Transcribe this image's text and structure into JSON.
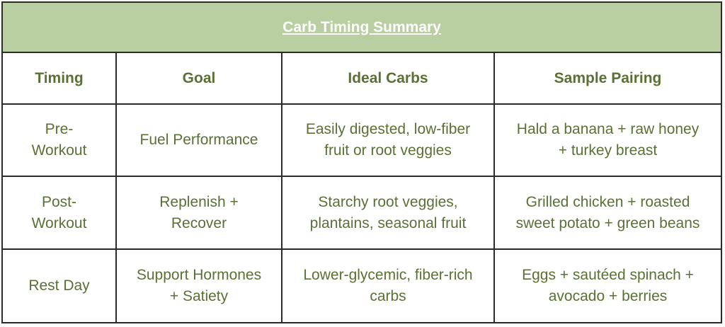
{
  "title": "Carb Timing Summary",
  "headers": [
    "Timing",
    "Goal",
    "Ideal Carbs",
    "Sample Pairing"
  ],
  "rows": [
    [
      "Pre-\nWorkout",
      "Fuel Performance",
      "Easily digested, low-fiber\nfruit or root veggies",
      "Hald a banana + raw honey\n+ turkey breast"
    ],
    [
      "Post-\nWorkout",
      "Replenish +\nRecover",
      "Starchy root veggies,\nplantains, seasonal fruit",
      "Grilled chicken + roasted\nsweet potato + green beans"
    ],
    [
      "Rest Day",
      "Support Hormones\n+ Satiety",
      "Lower-glycemic, fiber-rich\ncarbs",
      "Eggs + sautéed spinach +\navocado + berries"
    ]
  ],
  "colors": {
    "header_bg": "#b9cfa1",
    "text": "#5b7034",
    "border": "#2b2b2b",
    "title_text": "#ffffff"
  }
}
